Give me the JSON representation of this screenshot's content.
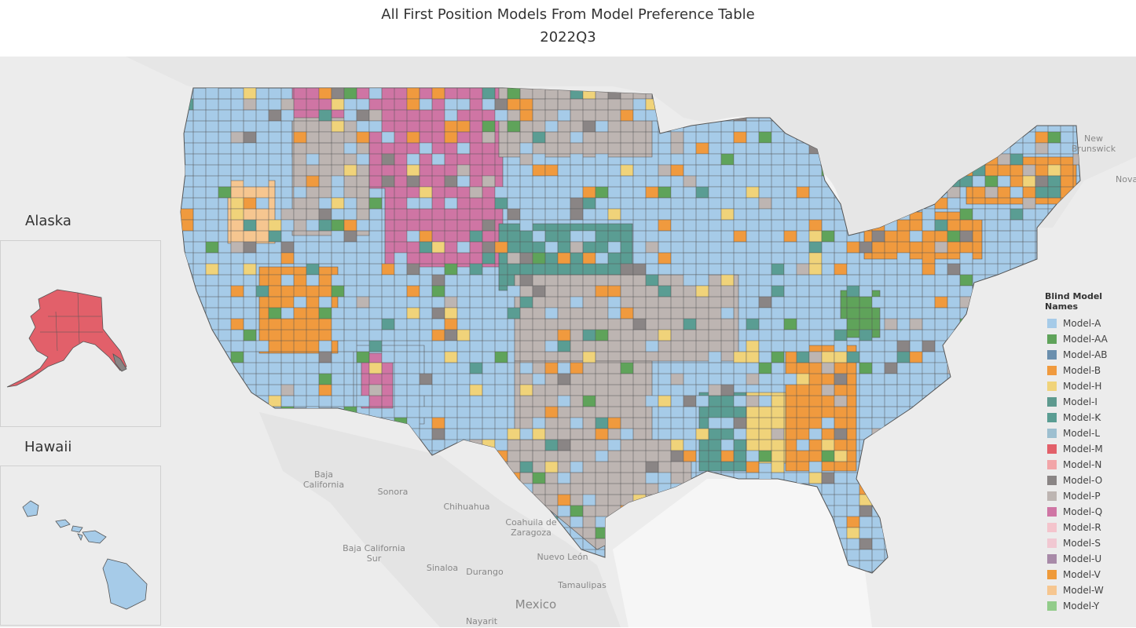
{
  "title": "All First Position Models From Model Preference Table",
  "subtitle": "2022Q3",
  "insets": {
    "alaska": "Alaska",
    "hawaii": "Hawaii"
  },
  "base_labels": {
    "new_brunswick_1": "New",
    "new_brunswick_2": "Brunswick",
    "nova": "Nova",
    "baja_california_1": "Baja",
    "baja_california_2": "California",
    "sonora": "Sonora",
    "chihuahua": "Chihuahua",
    "coahuila_1": "Coahuila de",
    "coahuila_2": "Zaragoza",
    "baja_sur_1": "Baja California",
    "baja_sur_2": "Sur",
    "sinaloa": "Sinaloa",
    "durango": "Durango",
    "nuevo_leon": "Nuevo León",
    "tamaulipas": "Tamaulipas",
    "mexico": "Mexico",
    "nayarit": "Nayarit"
  },
  "legend": {
    "title": "Blind Model Names",
    "items": [
      {
        "label": "Model-A",
        "color": "#a6cbe8"
      },
      {
        "label": "Model-AA",
        "color": "#5fa35a"
      },
      {
        "label": "Model-AB",
        "color": "#6b8fae"
      },
      {
        "label": "Model-B",
        "color": "#f09a3e"
      },
      {
        "label": "Model-H",
        "color": "#f0d37a"
      },
      {
        "label": "Model-I",
        "color": "#5e9a8f"
      },
      {
        "label": "Model-K",
        "color": "#5a9d93"
      },
      {
        "label": "Model-L",
        "color": "#9dbfd0"
      },
      {
        "label": "Model-M",
        "color": "#e2606a"
      },
      {
        "label": "Model-N",
        "color": "#f2a5a8"
      },
      {
        "label": "Model-O",
        "color": "#8a8585"
      },
      {
        "label": "Model-P",
        "color": "#bdb5b2"
      },
      {
        "label": "Model-Q",
        "color": "#cf75a4"
      },
      {
        "label": "Model-R",
        "color": "#f4c4cc"
      },
      {
        "label": "Model-S",
        "color": "#f1c8d2"
      },
      {
        "label": "Model-U",
        "color": "#a88aa8"
      },
      {
        "label": "Model-V",
        "color": "#ef9a3a"
      },
      {
        "label": "Model-W",
        "color": "#f6c690"
      },
      {
        "label": "Model-Y",
        "color": "#92cc8a"
      }
    ]
  }
}
